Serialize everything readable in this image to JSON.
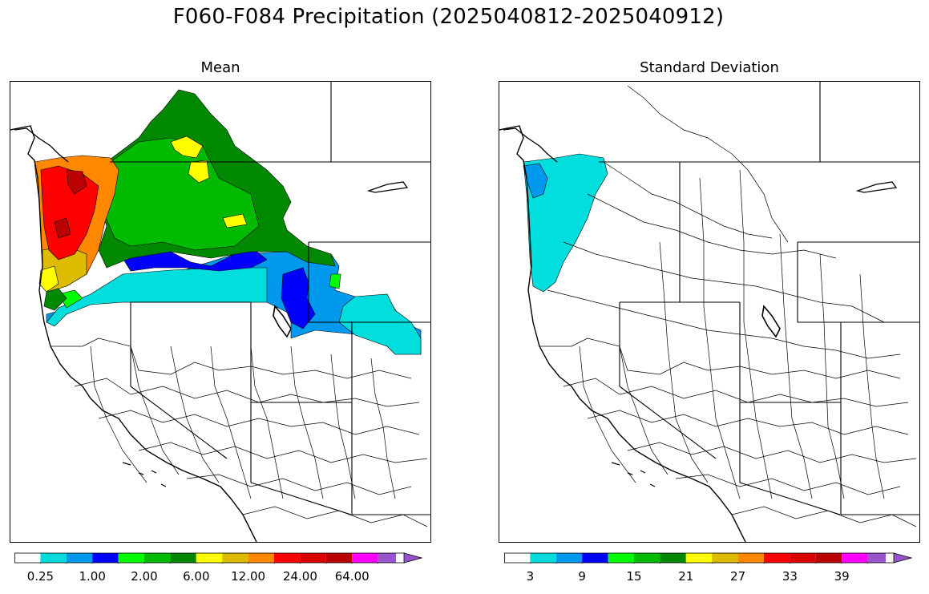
{
  "title": "F060-F084 Precipitation (2025040812-2025040912)",
  "panels": [
    {
      "id": "mean",
      "title": "Mean",
      "colorbar": {
        "colors": [
          "#ffffff",
          "#00dddd",
          "#0099ee",
          "#0000ff",
          "#00ff00",
          "#00bb00",
          "#008800",
          "#ffff00",
          "#ddbb00",
          "#ff8800",
          "#ff0000",
          "#dd0000",
          "#bb0000",
          "#ff00ff",
          "#9955cc"
        ],
        "tick_labels": [
          "0.25",
          "1.00",
          "2.00",
          "6.00",
          "12.00",
          "24.00",
          "64.00"
        ],
        "extend": "max"
      }
    },
    {
      "id": "stddev",
      "title": "Standard Deviation",
      "colorbar": {
        "colors": [
          "#ffffff",
          "#00dddd",
          "#0099ee",
          "#0000ff",
          "#00ff00",
          "#00bb00",
          "#008800",
          "#ffff00",
          "#ddbb00",
          "#ff8800",
          "#ff0000",
          "#dd0000",
          "#bb0000",
          "#ff00ff",
          "#9955cc"
        ],
        "tick_labels": [
          "3",
          "9",
          "15",
          "21",
          "27",
          "33",
          "39"
        ],
        "extend": "max"
      }
    }
  ]
}
